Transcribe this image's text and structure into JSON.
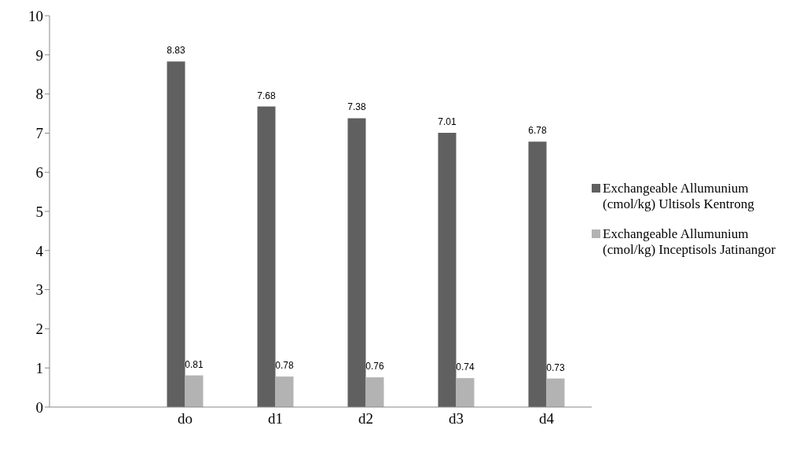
{
  "chart_data": {
    "type": "bar",
    "categories": [
      null,
      "do",
      "d1",
      "d2",
      "d3",
      "d4"
    ],
    "series": [
      {
        "name": "Exchangeable Allumunium (cmol/kg) Ultisols Kentrong",
        "color": "#606060",
        "values": [
          null,
          8.83,
          7.68,
          7.38,
          7.01,
          6.78
        ]
      },
      {
        "name": "Exchangeable Allumunium (cmol/kg) Inceptisols Jatinangor",
        "color": "#b3b3b3",
        "values": [
          null,
          0.81,
          0.78,
          0.76,
          0.74,
          0.73
        ]
      }
    ],
    "ylim": [
      0,
      10
    ],
    "yticks": [
      0,
      1,
      2,
      3,
      4,
      5,
      6,
      7,
      8,
      9,
      10
    ],
    "grid": false,
    "legend": "right",
    "data_labels": true
  }
}
